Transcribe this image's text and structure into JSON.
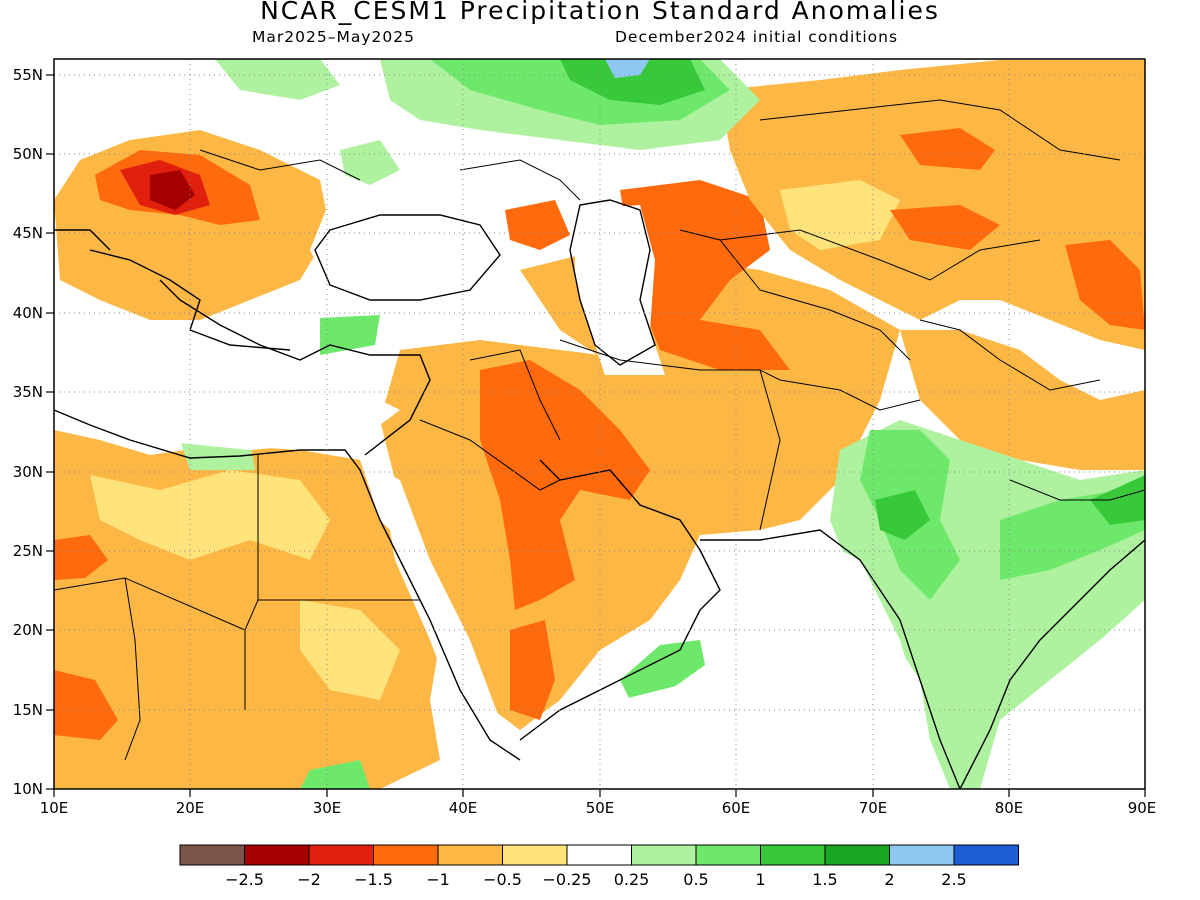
{
  "header": {
    "title": "NCAR_CESM1 Precipitation Standard Anomalies",
    "period": "Mar2025–May2025",
    "initial_conditions": "December2024 initial conditions"
  },
  "map": {
    "lon_range": [
      10,
      90
    ],
    "lat_range": [
      10,
      56
    ],
    "lon_ticks": [
      "10E",
      "20E",
      "30E",
      "40E",
      "50E",
      "60E",
      "70E",
      "80E",
      "90E"
    ],
    "lat_ticks": [
      "55N",
      "50N",
      "45N",
      "40N",
      "35N",
      "30N",
      "25N",
      "20N",
      "15N",
      "10N"
    ],
    "grid": "dotted"
  },
  "colorbar": {
    "colors": [
      "#7a5548",
      "#a50000",
      "#e0200c",
      "#ff6a0d",
      "#fdb744",
      "#fde37a",
      "#ffffff",
      "#aef2a0",
      "#6ee86a",
      "#37c93a",
      "#1aa520",
      "#8fc8f2",
      "#1c5fd4"
    ],
    "labels": [
      "−2.5",
      "−2",
      "−1.5",
      "−1",
      "−0.5",
      "−0.25",
      "0.25",
      "0.5",
      "1",
      "1.5",
      "2",
      "2.5"
    ]
  }
}
